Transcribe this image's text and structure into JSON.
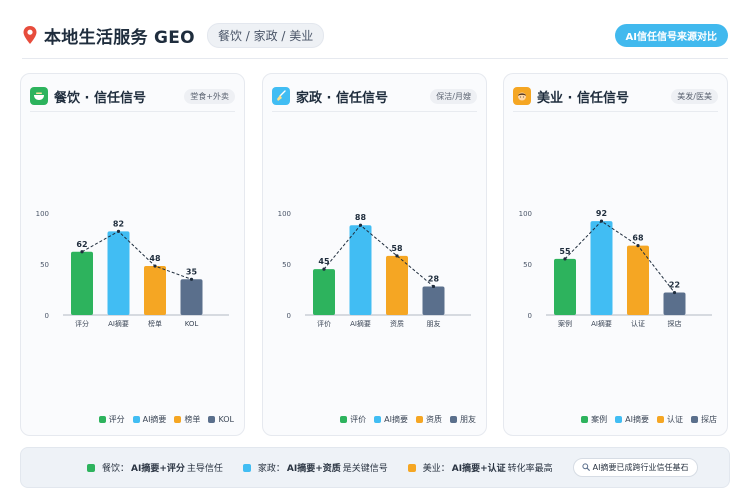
{
  "header": {
    "title": "本地生活服务 GEO",
    "chip": "餐饮 / 家政 / 美业",
    "cta": "AI信任信号来源对比"
  },
  "colors": {
    "green": "#2db35d",
    "blue": "#41bdf3",
    "orange": "#f5a623",
    "navy": "#5a6f8c",
    "line": "#1f2d3d"
  },
  "panels": [
    {
      "icon": "bowl-icon",
      "icon_bg": "#2db35d",
      "title": "餐饮 · 信任信号",
      "tag": "堂食+外卖"
    },
    {
      "icon": "broom-icon",
      "icon_bg": "#41bdf3",
      "title": "家政 · 信任信号",
      "tag": "保洁/月嫂"
    },
    {
      "icon": "face-icon",
      "icon_bg": "#f5a623",
      "title": "美业 · 信任信号",
      "tag": "美发/医美"
    }
  ],
  "chart_data": [
    {
      "type": "bar",
      "categories": [
        "评分",
        "AI摘要",
        "榜单",
        "KOL"
      ],
      "values": [
        62,
        82,
        48,
        35
      ],
      "title": "",
      "xlabel": "",
      "ylabel": "",
      "ylim": [
        0,
        100
      ],
      "yticks": [
        0,
        50,
        100
      ],
      "overlay": "dashed-line",
      "legend": [
        "评分",
        "AI摘要",
        "榜单",
        "KOL"
      ],
      "legend_position": "bottom-right"
    },
    {
      "type": "bar",
      "categories": [
        "评价",
        "AI摘要",
        "资质",
        "朋友"
      ],
      "values": [
        45,
        88,
        58,
        28
      ],
      "title": "",
      "xlabel": "",
      "ylabel": "",
      "ylim": [
        0,
        100
      ],
      "yticks": [
        0,
        50,
        100
      ],
      "overlay": "dashed-line",
      "legend": [
        "评价",
        "AI摘要",
        "资质",
        "朋友"
      ],
      "legend_position": "bottom-right"
    },
    {
      "type": "bar",
      "categories": [
        "案例",
        "AI摘要",
        "认证",
        "探店"
      ],
      "values": [
        55,
        92,
        68,
        22
      ],
      "title": "",
      "xlabel": "",
      "ylabel": "",
      "ylim": [
        0,
        100
      ],
      "yticks": [
        0,
        50,
        100
      ],
      "overlay": "dashed-line",
      "legend": [
        "案例",
        "AI摘要",
        "认证",
        "探店"
      ],
      "legend_position": "bottom-right"
    }
  ],
  "footer": {
    "items": [
      {
        "prefix": "餐饮：",
        "bold": "AI摘要+评分",
        "suffix": "主导信任"
      },
      {
        "prefix": "家政：",
        "bold": "AI摘要+资质",
        "suffix": "是关键信号"
      },
      {
        "prefix": "美业：",
        "bold": "AI摘要+认证",
        "suffix": "转化率最高"
      }
    ],
    "badge": "AI摘要已成跨行业信任基石",
    "badge_icon": "magnifier-icon"
  }
}
